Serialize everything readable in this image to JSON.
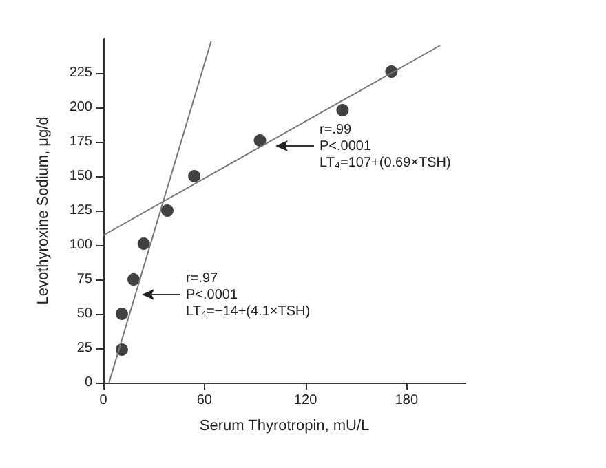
{
  "chart_data": {
    "type": "scatter",
    "xlabel": "Serum Thyrotropin, mU/L",
    "ylabel": "Levothyroxine Sodium, μg/d",
    "xlim": [
      0,
      215
    ],
    "xticks": [
      0,
      60,
      120,
      180
    ],
    "ylim": [
      0,
      250
    ],
    "yticks": [
      0,
      25,
      50,
      75,
      100,
      125,
      150,
      175,
      200,
      225
    ],
    "grid": false,
    "marker": "circle",
    "series": [
      {
        "type": "scatter",
        "color": "#111111",
        "x": [
          11,
          11,
          18,
          24,
          38,
          54,
          93,
          142,
          171
        ],
        "values": [
          24,
          50,
          75,
          101,
          125,
          150,
          176,
          198,
          226
        ]
      },
      {
        "type": "line",
        "color": "#777777",
        "marker": "none",
        "line_style": "solid",
        "x": [
          3.4,
          64
        ],
        "values": [
          0,
          248
        ]
      },
      {
        "type": "line",
        "color": "#777777",
        "marker": "none",
        "line_style": "solid",
        "x": [
          0,
          200
        ],
        "values": [
          107,
          245
        ]
      }
    ],
    "annotations": [
      "r=.99\nP<.0001\nLT₄=107+(0.69×TSH)",
      "r=.97\nP<.0001\nLT₄=−14+(4.1×TSH)"
    ]
  }
}
